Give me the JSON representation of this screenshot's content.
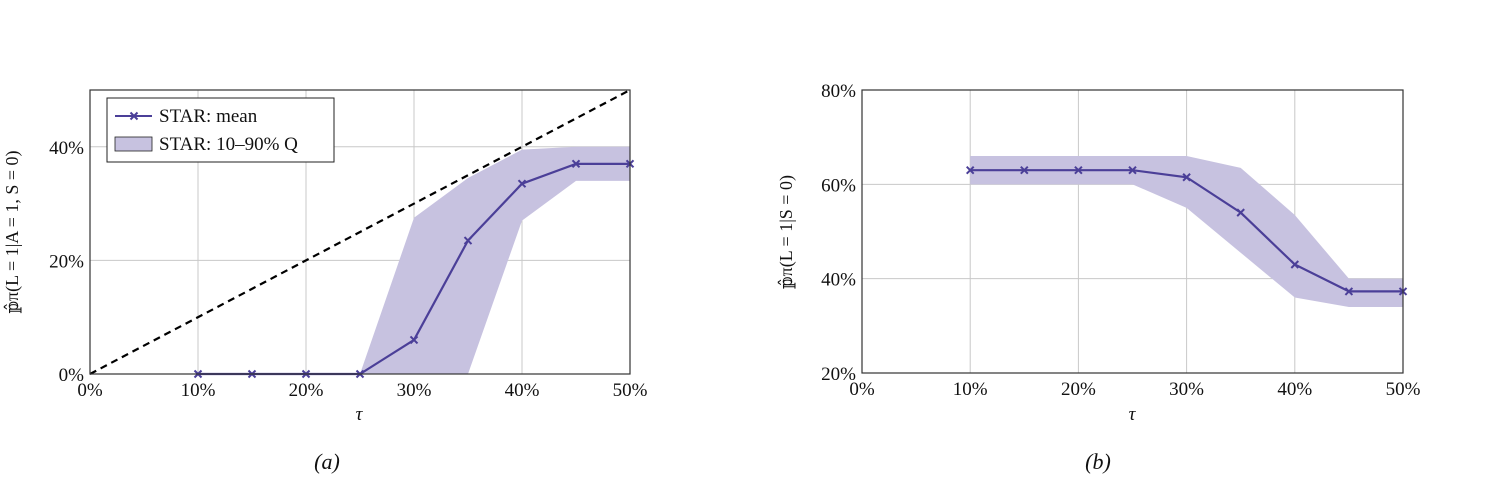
{
  "colors": {
    "series": "#4b3f98",
    "band": "#c7c2e0",
    "grid": "#c8c8c8",
    "diagonal": "#000000",
    "axis": "#333333"
  },
  "legend": {
    "mean_label": "STAR: mean",
    "band_label": "STAR: 10–90% Q"
  },
  "panels": [
    {
      "caption": "(a)",
      "xlabel": "τ",
      "ylabel": "𝕡̂π(L = 1|A = 1, S = 0)"
    },
    {
      "caption": "(b)",
      "xlabel": "τ",
      "ylabel": "𝕡̂π(L = 1|S = 0)"
    }
  ],
  "chart_data": [
    {
      "type": "line",
      "xlabel": "τ",
      "ylabel": "𝕡̂π(L = 1|A = 1, S = 0)",
      "xlim": [
        0,
        50
      ],
      "ylim": [
        0,
        50
      ],
      "xticks": [
        0,
        10,
        20,
        30,
        40,
        50
      ],
      "xtick_labels": [
        "0%",
        "10%",
        "20%",
        "30%",
        "40%",
        "50%"
      ],
      "yticks": [
        0,
        20,
        40
      ],
      "ytick_labels": [
        "0%",
        "20%",
        "40%"
      ],
      "grid": true,
      "legend_position": "top-left",
      "diagonal": {
        "style": "dashed",
        "x": [
          0,
          50
        ],
        "y": [
          0,
          50
        ]
      },
      "series": [
        {
          "name": "STAR: mean",
          "x": [
            10,
            15,
            20,
            25,
            30,
            35,
            40,
            45,
            50
          ],
          "y": [
            0,
            0,
            0,
            0,
            6,
            23.5,
            33.5,
            37,
            37
          ]
        }
      ],
      "band": {
        "name": "STAR: 10–90% Q",
        "x": [
          25,
          30,
          35,
          40,
          45,
          50
        ],
        "lower": [
          0,
          0,
          0,
          27,
          34,
          34
        ],
        "upper": [
          0,
          27.5,
          34.5,
          39.5,
          40,
          40
        ]
      }
    },
    {
      "type": "line",
      "xlabel": "τ",
      "ylabel": "𝕡̂π(L = 1|S = 0)",
      "xlim": [
        0,
        50
      ],
      "ylim": [
        20,
        80
      ],
      "xticks": [
        0,
        10,
        20,
        30,
        40,
        50
      ],
      "xtick_labels": [
        "0%",
        "10%",
        "20%",
        "30%",
        "40%",
        "50%"
      ],
      "yticks": [
        20,
        40,
        60,
        80
      ],
      "ytick_labels": [
        "20%",
        "40%",
        "60%",
        "80%"
      ],
      "grid": true,
      "series": [
        {
          "name": "STAR: mean",
          "x": [
            10,
            15,
            20,
            25,
            30,
            35,
            40,
            45,
            50
          ],
          "y": [
            63,
            63,
            63,
            63,
            61.5,
            54,
            43,
            37.3,
            37.3
          ]
        }
      ],
      "band": {
        "name": "STAR: 10–90% Q",
        "x": [
          10,
          15,
          20,
          25,
          30,
          35,
          40,
          45,
          50
        ],
        "lower": [
          60,
          60,
          60,
          60,
          55,
          45.5,
          36,
          34,
          34
        ],
        "upper": [
          66,
          66,
          66,
          66,
          66,
          63.5,
          53.5,
          40,
          40
        ]
      }
    }
  ]
}
